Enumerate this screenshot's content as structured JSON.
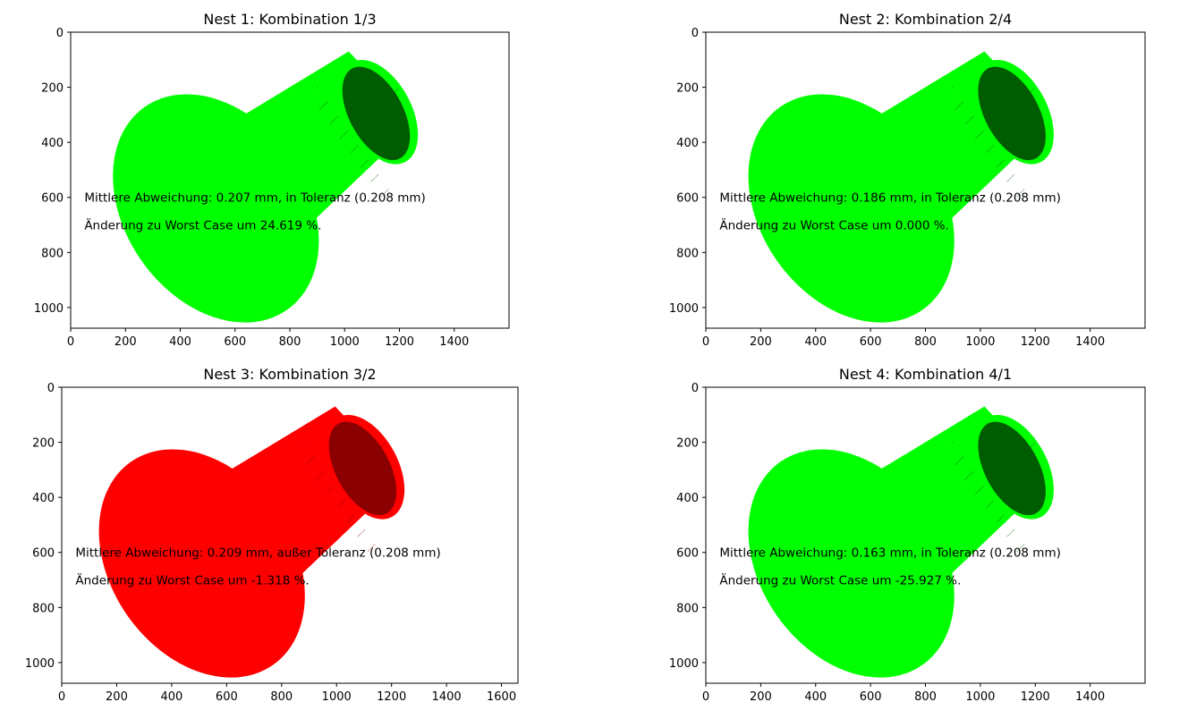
{
  "chart_data": [
    {
      "type": "image",
      "title": "Nest 1: Kombination 1/3",
      "xlim": [
        0,
        1600
      ],
      "ylim": [
        1075,
        0
      ],
      "xticks": [
        0,
        200,
        400,
        600,
        800,
        1000,
        1200,
        1400
      ],
      "yticks": [
        0,
        200,
        400,
        600,
        800,
        1000
      ],
      "within_tolerance": true,
      "object_color": "#00ff00",
      "shade_color": "#005c00",
      "offset_x": 0,
      "annotations": [
        {
          "text": "Mittlere Abweichung: 0.207 mm, in Toleranz (0.208 mm)",
          "x": 50,
          "y": 600
        },
        {
          "text": "Änderung zu Worst Case um 24.619 %.",
          "x": 50,
          "y": 700
        }
      ]
    },
    {
      "type": "image",
      "title": "Nest 2: Kombination 2/4",
      "xlim": [
        0,
        1600
      ],
      "ylim": [
        1075,
        0
      ],
      "xticks": [
        0,
        200,
        400,
        600,
        800,
        1000,
        1200,
        1400
      ],
      "yticks": [
        0,
        200,
        400,
        600,
        800,
        1000
      ],
      "within_tolerance": true,
      "object_color": "#00ff00",
      "shade_color": "#005c00",
      "offset_x": 0,
      "annotations": [
        {
          "text": "Mittlere Abweichung: 0.186 mm, in Toleranz (0.208 mm)",
          "x": 50,
          "y": 600
        },
        {
          "text": "Änderung zu Worst Case um 0.000 %.",
          "x": 50,
          "y": 700
        }
      ]
    },
    {
      "type": "image",
      "title": "Nest 3: Kombination 3/2",
      "xlim": [
        0,
        1660
      ],
      "ylim": [
        1075,
        0
      ],
      "xticks": [
        0,
        200,
        400,
        600,
        800,
        1000,
        1200,
        1400,
        1600
      ],
      "yticks": [
        0,
        200,
        400,
        600,
        800,
        1000
      ],
      "within_tolerance": false,
      "object_color": "#ff0000",
      "shade_color": "#8b0000",
      "offset_x": -20,
      "annotations": [
        {
          "text": "Mittlere Abweichung: 0.209 mm, außer Toleranz (0.208 mm)",
          "x": 50,
          "y": 600
        },
        {
          "text": "Änderung zu Worst Case um -1.318 %.",
          "x": 50,
          "y": 700
        }
      ]
    },
    {
      "type": "image",
      "title": "Nest 4: Kombination 4/1",
      "xlim": [
        0,
        1600
      ],
      "ylim": [
        1075,
        0
      ],
      "xticks": [
        0,
        200,
        400,
        600,
        800,
        1000,
        1200,
        1400
      ],
      "yticks": [
        0,
        200,
        400,
        600,
        800,
        1000
      ],
      "within_tolerance": true,
      "object_color": "#00ff00",
      "shade_color": "#005c00",
      "offset_x": 0,
      "annotations": [
        {
          "text": "Mittlere Abweichung: 0.163 mm, in Toleranz (0.208 mm)",
          "x": 50,
          "y": 600
        },
        {
          "text": "Änderung zu Worst Case um -25.927 %.",
          "x": 50,
          "y": 700
        }
      ]
    }
  ]
}
